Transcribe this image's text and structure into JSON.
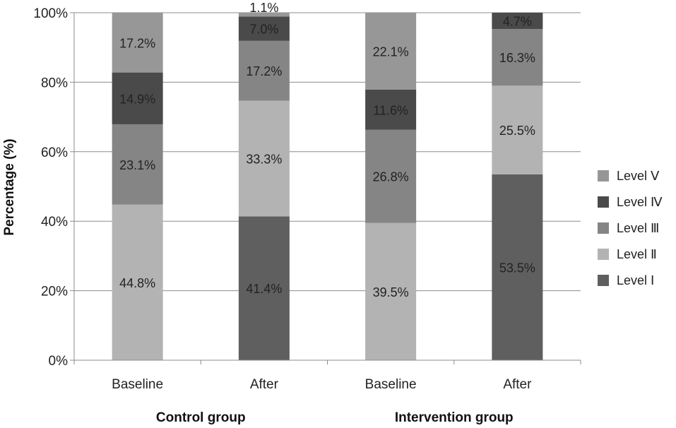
{
  "chart_data": {
    "type": "bar",
    "stacked": true,
    "title": "",
    "xlabel": "",
    "ylabel": "Percentage (%)",
    "ylim": [
      0,
      100
    ],
    "y_ticks": [
      "0%",
      "20%",
      "40%",
      "60%",
      "80%",
      "100%"
    ],
    "grid": "horizontal",
    "legend_position": "right",
    "categories": [
      "Baseline",
      "After",
      "Baseline",
      "After"
    ],
    "groups": [
      {
        "label": "Control group",
        "categories": [
          0,
          1
        ]
      },
      {
        "label": "Intervention group",
        "categories": [
          2,
          3
        ]
      }
    ],
    "series": [
      {
        "name": "Level Ⅰ",
        "color": "#5f5f5f",
        "values": [
          0,
          41.4,
          0,
          53.5
        ],
        "labels": [
          "",
          "41.4%",
          "",
          "53.5%"
        ]
      },
      {
        "name": "Level Ⅱ",
        "color": "#b3b3b3",
        "values": [
          44.8,
          33.3,
          39.5,
          25.5
        ],
        "labels": [
          "44.8%",
          "33.3%",
          "39.5%",
          "25.5%"
        ]
      },
      {
        "name": "Level Ⅲ",
        "color": "#858585",
        "values": [
          23.1,
          17.2,
          26.8,
          16.3
        ],
        "labels": [
          "23.1%",
          "17.2%",
          "26.8%",
          "16.3%"
        ]
      },
      {
        "name": "Level Ⅳ",
        "color": "#4a4a4a",
        "values": [
          14.9,
          7.0,
          11.6,
          4.7
        ],
        "labels": [
          "14.9%",
          "7.0%",
          "11.6%",
          "4.7%"
        ]
      },
      {
        "name": "Level Ⅴ",
        "color": "#979797",
        "values": [
          17.2,
          1.1,
          22.1,
          0
        ],
        "labels": [
          "17.2%",
          "1.1%",
          "22.1%",
          ""
        ]
      }
    ]
  }
}
